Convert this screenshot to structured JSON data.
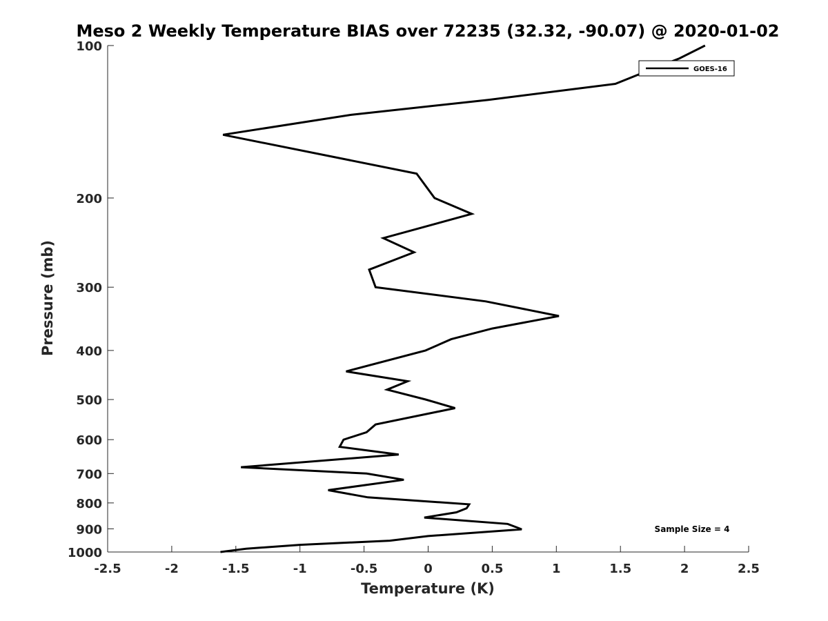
{
  "chart_data": {
    "type": "line",
    "title": "Meso 2 Weekly Temperature BIAS over 72235 (32.32, -90.07) @ 2020-01-02",
    "xlabel": "Temperature (K)",
    "ylabel": "Pressure (mb)",
    "xlim": [
      -2.5,
      2.5
    ],
    "ylim": [
      100,
      1000
    ],
    "y_scale": "log",
    "y_reversed": true,
    "grid": false,
    "legend_position": "top-right",
    "x_ticks": [
      {
        "value": -2.5,
        "label": "-2.5"
      },
      {
        "value": -2,
        "label": "-2"
      },
      {
        "value": -1.5,
        "label": "-1.5"
      },
      {
        "value": -1,
        "label": "-1"
      },
      {
        "value": -0.5,
        "label": "-0.5"
      },
      {
        "value": 0,
        "label": "0"
      },
      {
        "value": 0.5,
        "label": "0.5"
      },
      {
        "value": 1,
        "label": "1"
      },
      {
        "value": 1.5,
        "label": "1.5"
      },
      {
        "value": 2,
        "label": "2"
      },
      {
        "value": 2.5,
        "label": "2.5"
      }
    ],
    "y_ticks": [
      {
        "value": 100,
        "label": "100"
      },
      {
        "value": 200,
        "label": "200"
      },
      {
        "value": 300,
        "label": "300"
      },
      {
        "value": 400,
        "label": "400"
      },
      {
        "value": 500,
        "label": "500"
      },
      {
        "value": 600,
        "label": "600"
      },
      {
        "value": 700,
        "label": "700"
      },
      {
        "value": 800,
        "label": "800"
      },
      {
        "value": 900,
        "label": "900"
      },
      {
        "value": 1000,
        "label": "1000"
      }
    ],
    "annotation": "Sample Size = 4",
    "series": [
      {
        "name": "GOES-16",
        "color": "#000000",
        "points": [
          {
            "x": 2.16,
            "p": 100
          },
          {
            "x": 1.96,
            "p": 106
          },
          {
            "x": 1.72,
            "p": 112
          },
          {
            "x": 1.46,
            "p": 119
          },
          {
            "x": 0.47,
            "p": 128
          },
          {
            "x": -0.6,
            "p": 137
          },
          {
            "x": -1.6,
            "p": 150
          },
          {
            "x": -0.09,
            "p": 179
          },
          {
            "x": 0.05,
            "p": 200
          },
          {
            "x": 0.34,
            "p": 215
          },
          {
            "x": -0.35,
            "p": 240
          },
          {
            "x": -0.11,
            "p": 256
          },
          {
            "x": -0.46,
            "p": 277
          },
          {
            "x": -0.41,
            "p": 300
          },
          {
            "x": 0.45,
            "p": 320
          },
          {
            "x": 1.02,
            "p": 342
          },
          {
            "x": 0.5,
            "p": 362
          },
          {
            "x": 0.18,
            "p": 380
          },
          {
            "x": -0.02,
            "p": 400
          },
          {
            "x": -0.64,
            "p": 440
          },
          {
            "x": -0.16,
            "p": 460
          },
          {
            "x": -0.32,
            "p": 478
          },
          {
            "x": -0.02,
            "p": 500
          },
          {
            "x": 0.21,
            "p": 520
          },
          {
            "x": -0.41,
            "p": 560
          },
          {
            "x": -0.48,
            "p": 580
          },
          {
            "x": -0.66,
            "p": 600
          },
          {
            "x": -0.69,
            "p": 620
          },
          {
            "x": -0.23,
            "p": 642
          },
          {
            "x": -1.46,
            "p": 680
          },
          {
            "x": -0.48,
            "p": 700
          },
          {
            "x": -0.19,
            "p": 720
          },
          {
            "x": -0.78,
            "p": 755
          },
          {
            "x": -0.47,
            "p": 780
          },
          {
            "x": 0.32,
            "p": 805
          },
          {
            "x": 0.3,
            "p": 820
          },
          {
            "x": 0.22,
            "p": 835
          },
          {
            "x": -0.03,
            "p": 855
          },
          {
            "x": 0.62,
            "p": 880
          },
          {
            "x": 0.73,
            "p": 902
          },
          {
            "x": 0.0,
            "p": 930
          },
          {
            "x": -0.3,
            "p": 950
          },
          {
            "x": -1.0,
            "p": 968
          },
          {
            "x": -1.42,
            "p": 985
          },
          {
            "x": -1.62,
            "p": 1000
          }
        ]
      }
    ]
  }
}
